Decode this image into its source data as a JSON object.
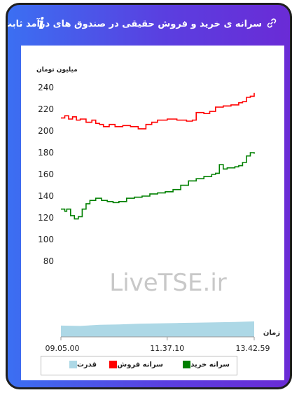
{
  "header": {
    "title": "سرانه ی خرید و فروش حقیقی در صندوق های درآمد ثابت",
    "info_glyph": "i",
    "link_icon": "link-icon"
  },
  "watermark": "LiveTSE.ir",
  "colors": {
    "sell": "#ff0000",
    "buy": "#008000",
    "power": "#add8e6",
    "frame_start": "#3b6ff2",
    "frame_end": "#6a2bd6"
  },
  "chart_data": {
    "type": "line",
    "ylabel": "میلیون تومان",
    "xlabel": "زمان",
    "yticks": [
      80,
      100,
      120,
      140,
      160,
      180,
      200,
      220,
      240
    ],
    "ylim": [
      80,
      240
    ],
    "xticks": [
      "09.05.00",
      "11.37.10",
      "13.42.59"
    ],
    "grid": false,
    "legend_position": "bottom",
    "series": [
      {
        "name": "سرانه فروش",
        "key": "sell",
        "color": "#ff0000",
        "x": [
          0,
          0.02,
          0.04,
          0.06,
          0.08,
          0.1,
          0.13,
          0.16,
          0.18,
          0.2,
          0.22,
          0.25,
          0.28,
          0.32,
          0.36,
          0.4,
          0.44,
          0.47,
          0.5,
          0.55,
          0.6,
          0.65,
          0.68,
          0.7,
          0.74,
          0.77,
          0.8,
          0.84,
          0.88,
          0.92,
          0.94,
          0.96,
          0.98,
          1.0
        ],
        "values": [
          212,
          214,
          211,
          213,
          210,
          211,
          208,
          210,
          207,
          206,
          204,
          206,
          204,
          205,
          204,
          202,
          206,
          208,
          210,
          211,
          210,
          209,
          210,
          217,
          216,
          218,
          222,
          223,
          224,
          226,
          227,
          231,
          232,
          235
        ]
      },
      {
        "name": "سرانه خرید",
        "key": "buy",
        "color": "#008000",
        "x": [
          0,
          0.02,
          0.03,
          0.05,
          0.07,
          0.09,
          0.11,
          0.13,
          0.15,
          0.18,
          0.21,
          0.24,
          0.27,
          0.3,
          0.34,
          0.38,
          0.42,
          0.46,
          0.5,
          0.54,
          0.58,
          0.62,
          0.66,
          0.7,
          0.74,
          0.78,
          0.8,
          0.82,
          0.84,
          0.86,
          0.88,
          0.9,
          0.92,
          0.94,
          0.96,
          0.98,
          1.0
        ],
        "values": [
          128,
          126,
          128,
          122,
          119,
          121,
          128,
          133,
          136,
          138,
          136,
          135,
          134,
          135,
          138,
          139,
          140,
          142,
          143,
          144,
          146,
          150,
          154,
          156,
          158,
          160,
          161,
          169,
          165,
          166,
          166,
          167,
          168,
          171,
          177,
          180,
          179
        ]
      },
      {
        "name": "قدرت",
        "key": "power",
        "color": "#add8e6",
        "x": [
          0,
          0.1,
          0.2,
          0.3,
          0.4,
          0.5,
          0.6,
          0.7,
          0.8,
          0.9,
          1.0
        ],
        "values": [
          0.62,
          0.6,
          0.66,
          0.68,
          0.72,
          0.74,
          0.76,
          0.78,
          0.8,
          0.82,
          0.85
        ]
      }
    ]
  }
}
